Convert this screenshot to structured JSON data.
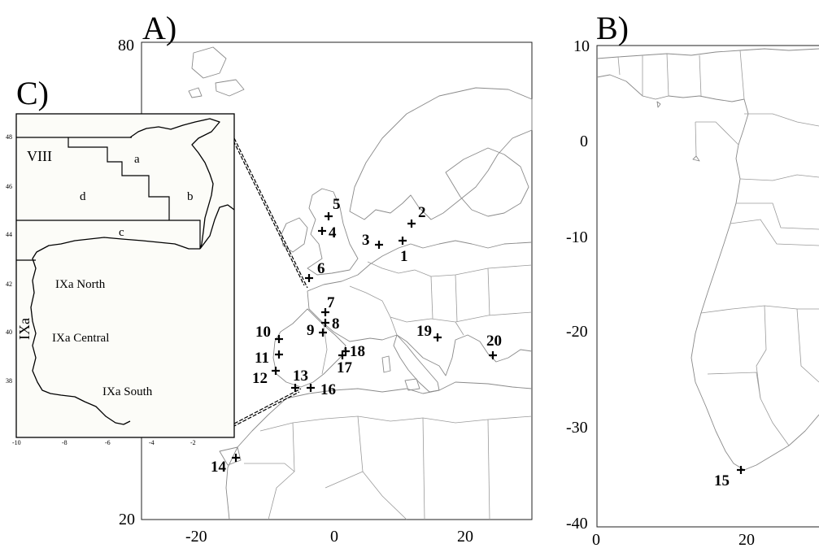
{
  "panels": {
    "a": {
      "label": "A)",
      "y_ticks": [
        "80",
        "20"
      ],
      "x_ticks": [
        "-20",
        "0",
        "20"
      ]
    },
    "b": {
      "label": "B)",
      "y_ticks": [
        "10",
        "0",
        "-10",
        "-20",
        "-30",
        "-40"
      ],
      "x_ticks": [
        "0",
        "20"
      ]
    },
    "c": {
      "label": "C)",
      "y_ticks": [
        "48",
        "46",
        "44",
        "42",
        "40",
        "38"
      ],
      "x_ticks": [
        "-10",
        "-8",
        "-6",
        "-4",
        "-2"
      ]
    }
  },
  "sites_a": [
    "1",
    "2",
    "3",
    "4",
    "5",
    "6",
    "7",
    "8",
    "9",
    "10",
    "11",
    "12",
    "13",
    "14",
    "16",
    "17",
    "18",
    "19",
    "20"
  ],
  "sites_b": [
    "15"
  ],
  "zones": {
    "viii": "VIII",
    "a": "a",
    "b": "b",
    "c": "c",
    "d": "d",
    "ixa": "IXa",
    "ixa_north": "IXa North",
    "ixa_central": "IXa Central",
    "ixa_south": "IXa South"
  }
}
